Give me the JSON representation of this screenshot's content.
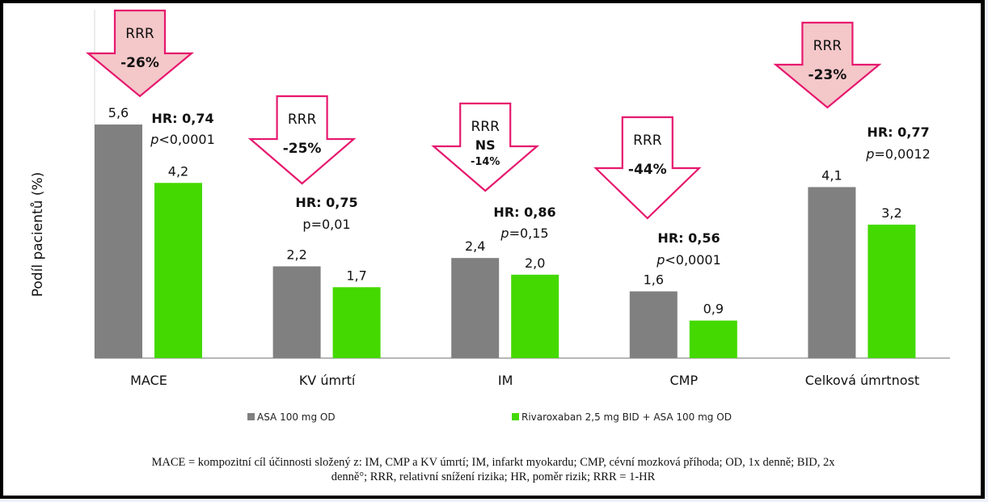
{
  "chart_data": {
    "type": "bar",
    "title": "",
    "xlabel": "",
    "ylabel": "Podíl pacientů (%)",
    "ylim": [
      0,
      5.6
    ],
    "grid": false,
    "legend_position": "bottom",
    "categories": [
      "MACE",
      "KV úmrtí",
      "IM",
      "CMP",
      "Celková úmrtnost"
    ],
    "series": [
      {
        "name": "ASA 100 mg OD",
        "color": "#808080",
        "values": [
          5.6,
          2.2,
          2.4,
          1.6,
          4.1
        ],
        "labels": [
          "5,6",
          "2,2",
          "2,4",
          "1,6",
          "4,1"
        ]
      },
      {
        "name": "Rivaroxaban 2,5 mg BID + ASA 100 mg OD",
        "color": "#44d900",
        "values": [
          4.2,
          1.7,
          2.0,
          0.9,
          3.2
        ],
        "labels": [
          "4,2",
          "1,7",
          "2,0",
          "0,9",
          "3,2"
        ]
      }
    ],
    "annotations": [
      {
        "category": "MACE",
        "rrr_label": "RRR",
        "rrr_value": "-26%",
        "ns": "",
        "filled": true,
        "hr": "HR: 0,74",
        "p_prefix": "p",
        "p_rest": "<0,0001",
        "p_italic": true
      },
      {
        "category": "KV úmrtí",
        "rrr_label": "RRR",
        "rrr_value": "-25%",
        "ns": "",
        "filled": false,
        "hr": "HR: 0,75",
        "p_prefix": "p",
        "p_rest": "=0,01",
        "p_italic": false
      },
      {
        "category": "IM",
        "rrr_label": "RRR",
        "rrr_value": "-14%",
        "ns": "NS",
        "filled": false,
        "hr": "HR: 0,86",
        "p_prefix": "p",
        "p_rest": "=0,15",
        "p_italic": true
      },
      {
        "category": "CMP",
        "rrr_label": "RRR",
        "rrr_value": "-44%",
        "ns": "",
        "filled": false,
        "hr": "HR: 0,56",
        "p_prefix": "p",
        "p_rest": "<0,0001",
        "p_italic": true
      },
      {
        "category": "Celková úmrtnost",
        "rrr_label": "RRR",
        "rrr_value": "-23%",
        "ns": "",
        "filled": true,
        "hr": "HR: 0,77",
        "p_prefix": "p",
        "p_rest": "=0,0012",
        "p_italic": true
      }
    ]
  },
  "colors": {
    "arrow_stroke": "#e6186e",
    "arrow_fill": "#f4c7c9",
    "axis": "#8c8c8c"
  },
  "footnote": {
    "line1": "MACE = kompozitní cíl účinnosti složený z: IM, CMP a KV úmrtí; IM, infarkt myokardu; CMP, cévní mozková příhoda; OD, 1x denně; BID, 2x",
    "line2": "denně°; RRR, relativní snížení rizika; HR, poměr rizik; RRR = 1-HR"
  }
}
